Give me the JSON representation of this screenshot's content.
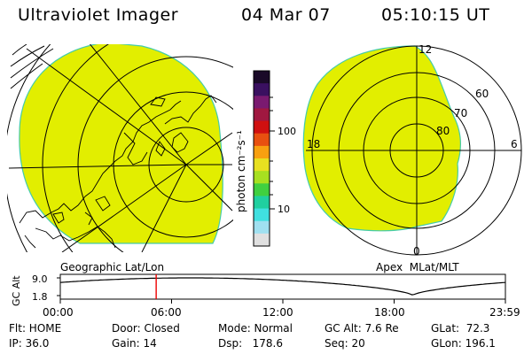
{
  "header": {
    "instrument": "Ultraviolet Imager",
    "date": "04 Mar 07",
    "time": "05:10:15 UT"
  },
  "left_panel": {
    "label": "Geographic Lat/Lon"
  },
  "right_panel": {
    "label": "Apex  MLat/MLT",
    "mlt_labels": [
      "12",
      "18",
      "6",
      "0"
    ],
    "mlat_labels": [
      "60",
      "70",
      "80"
    ]
  },
  "colorbar": {
    "unit_label": "photon cm⁻²s⁻¹",
    "ticks": [
      "100",
      "10"
    ],
    "colors": [
      "#1a0a28",
      "#3a1060",
      "#7a1a70",
      "#a01840",
      "#d01010",
      "#e85010",
      "#f8a010",
      "#e8e020",
      "#a8e020",
      "#40d040",
      "#20d0a0",
      "#40e0e0",
      "#a0e0f0",
      "#e0e0e0"
    ]
  },
  "colors": {
    "aurora_fill": "#e2ee00",
    "limb": "#44ccaa",
    "timeline_marker": "#ee0000"
  },
  "timeline": {
    "axis_label": "GC Alt",
    "y_ticks": [
      "9.0",
      "1.8"
    ],
    "x_ticks": [
      "00:00",
      "06:00",
      "12:00",
      "18:00",
      "23:59"
    ],
    "current_time_hours": 5.17
  },
  "info": {
    "flt": "Flt: HOME",
    "ip": "IP: 36.0",
    "door": "Door: Closed",
    "gain": "Gain: 14",
    "mode": "Mode: Normal",
    "dsp": "Dsp:   178.6",
    "gcalt": "GC Alt: 7.6 Re",
    "seq": "Seq: 20",
    "glat": "GLat:  72.3",
    "glon": "GLon: 196.1"
  }
}
